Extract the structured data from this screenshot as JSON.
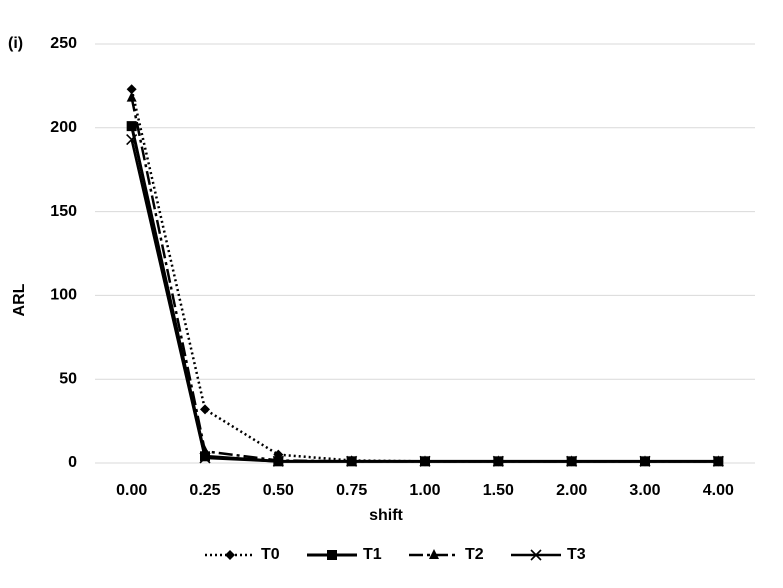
{
  "chart_data": {
    "type": "line",
    "annotation": "(i)",
    "x_label": "shift",
    "y_label": "ARL",
    "categories": [
      "0.00",
      "0.25",
      "0.50",
      "0.75",
      "1.00",
      "1.50",
      "2.00",
      "3.00",
      "4.00"
    ],
    "series": [
      {
        "name": "T0",
        "color": "#000000",
        "dash": "dotted",
        "marker": "diamond",
        "values": [
          223,
          32,
          5,
          1.5,
          1,
          1,
          1,
          1,
          1
        ]
      },
      {
        "name": "T1",
        "color": "#000000",
        "dash": "solid",
        "marker": "square",
        "values": [
          201,
          4,
          1,
          1,
          1,
          1,
          1,
          1,
          1
        ]
      },
      {
        "name": "T2",
        "color": "#000000",
        "dash": "dashdot",
        "marker": "triangle",
        "values": [
          218,
          7,
          1.5,
          1,
          1,
          1,
          1,
          1,
          1
        ]
      },
      {
        "name": "T3",
        "color": "#000000",
        "dash": "solid",
        "marker": "x",
        "values": [
          193,
          3,
          1,
          1,
          1,
          1,
          1,
          1,
          1
        ]
      }
    ],
    "ylim": [
      0,
      250
    ],
    "yticks": [
      0,
      50,
      100,
      150,
      200,
      250
    ],
    "grid": true,
    "legend": "bottom"
  }
}
